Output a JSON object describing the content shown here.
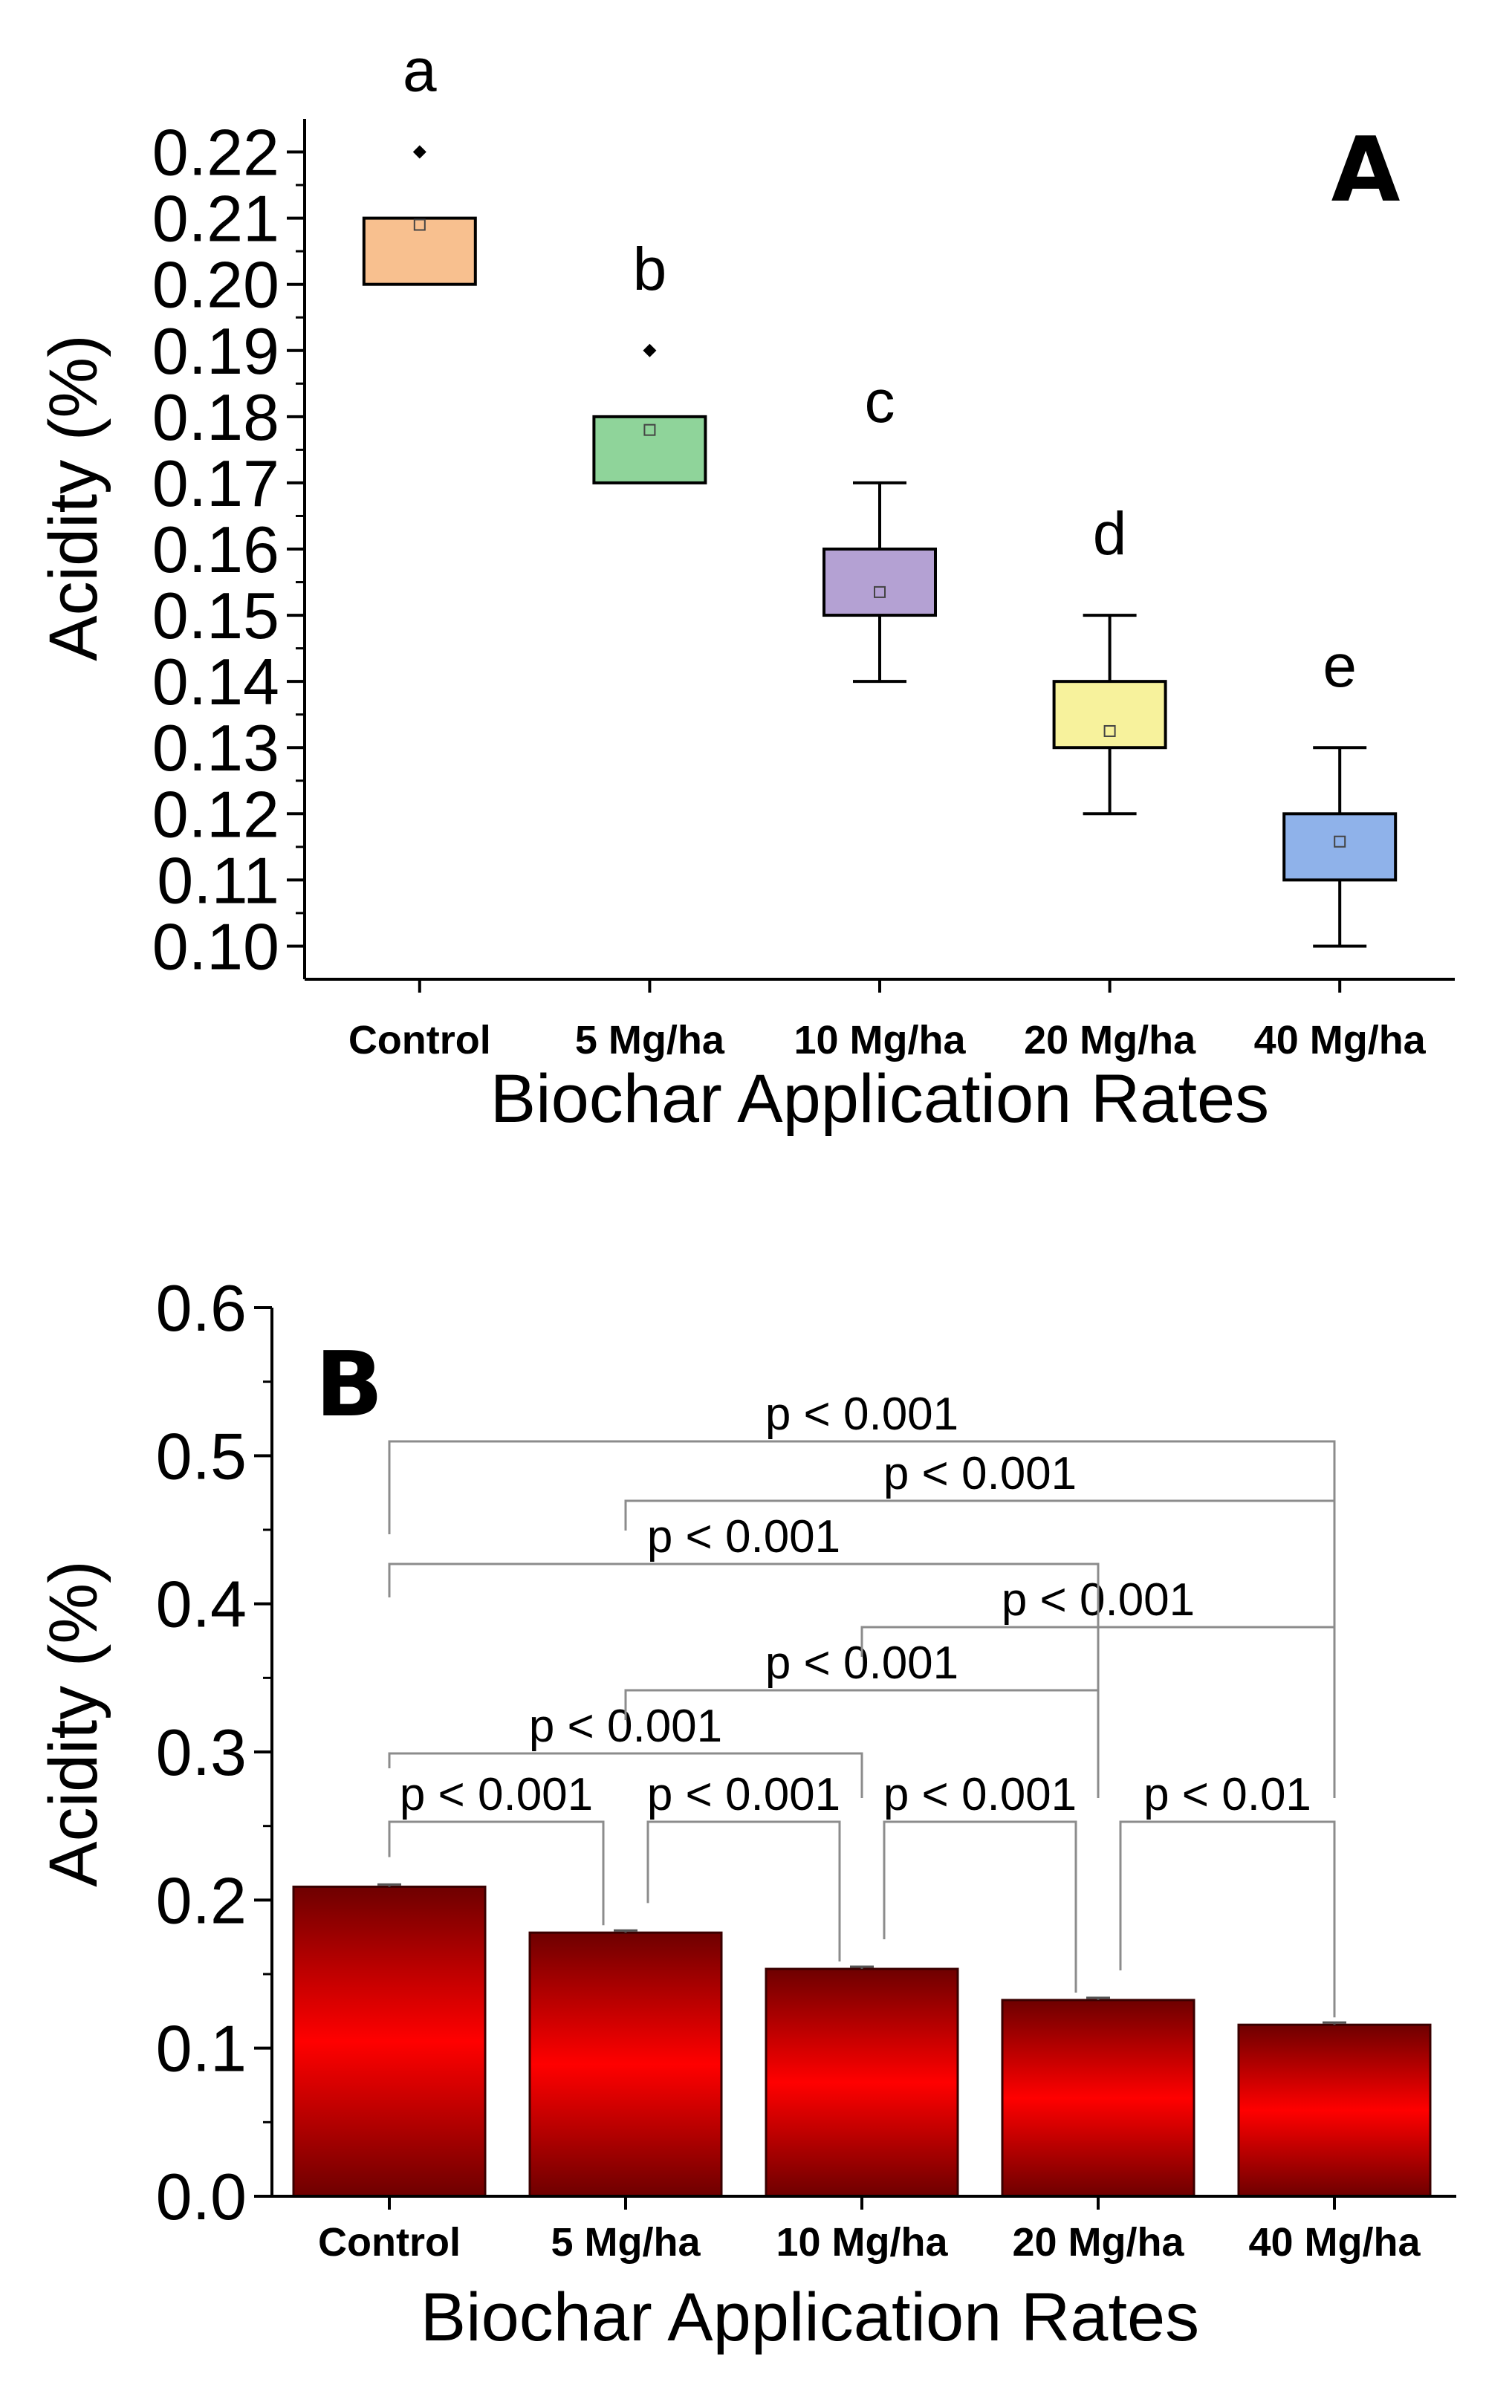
{
  "colors": {
    "box_fills": [
      "#f8c08f",
      "#8fd49a",
      "#b4a1d3",
      "#f7f29c",
      "#8fb2ea"
    ],
    "bar_dark": "#6e0000",
    "bar_bright": "#ff0000",
    "bracket": "#8c8c8c"
  },
  "chart_data": [
    {
      "type": "box",
      "panel_label": "A",
      "xlabel": "Biochar Application Rates",
      "ylabel": "Acidity (%)",
      "ylim": [
        0.095,
        0.225
      ],
      "yticks": [
        "0.10",
        "0.11",
        "0.12",
        "0.13",
        "0.14",
        "0.15",
        "0.16",
        "0.17",
        "0.18",
        "0.19",
        "0.20",
        "0.21",
        "0.22"
      ],
      "categories": [
        "Control",
        "5 Mg/ha",
        "10 Mg/ha",
        "20 Mg/ha",
        "40 Mg/ha"
      ],
      "boxes": [
        {
          "q1": 0.2,
          "q3": 0.21,
          "mean": 0.209,
          "whisker_low": 0.2,
          "whisker_high": 0.21,
          "outlier": 0.22,
          "letter": "a"
        },
        {
          "q1": 0.17,
          "q3": 0.18,
          "mean": 0.178,
          "whisker_low": 0.17,
          "whisker_high": 0.18,
          "outlier": 0.19,
          "letter": "b"
        },
        {
          "q1": 0.15,
          "q3": 0.16,
          "mean": 0.1535,
          "whisker_low": 0.14,
          "whisker_high": 0.17,
          "outlier": null,
          "letter": "c"
        },
        {
          "q1": 0.13,
          "q3": 0.14,
          "mean": 0.1325,
          "whisker_low": 0.12,
          "whisker_high": 0.15,
          "outlier": null,
          "letter": "d"
        },
        {
          "q1": 0.11,
          "q3": 0.12,
          "mean": 0.1158,
          "whisker_low": 0.1,
          "whisker_high": 0.13,
          "outlier": null,
          "letter": "e"
        }
      ]
    },
    {
      "type": "bar",
      "panel_label": "B",
      "xlabel": "Biochar Application Rates",
      "ylabel": "Acidity (%)",
      "ylim": [
        0.0,
        0.6
      ],
      "yticks": [
        "0.0",
        "0.1",
        "0.2",
        "0.3",
        "0.4",
        "0.5",
        "0.6"
      ],
      "categories": [
        "Control",
        "5 Mg/ha",
        "10 Mg/ha",
        "20 Mg/ha",
        "40 Mg/ha"
      ],
      "values": [
        0.209,
        0.178,
        0.1535,
        0.1325,
        0.1158
      ],
      "errors": [
        0.0015,
        0.0015,
        0.0015,
        0.0015,
        0.0015
      ],
      "comparisons": [
        {
          "from": 0,
          "to": 1,
          "label": "p < 0.001"
        },
        {
          "from": 1,
          "to": 2,
          "label": "p < 0.001"
        },
        {
          "from": 2,
          "to": 3,
          "label": "p < 0.001"
        },
        {
          "from": 3,
          "to": 4,
          "label": "p < 0.01"
        },
        {
          "from": 0,
          "to": 2,
          "label": "p < 0.001"
        },
        {
          "from": 1,
          "to": 3,
          "label": "p < 0.001"
        },
        {
          "from": 2,
          "to": 4,
          "label": "p < 0.001"
        },
        {
          "from": 0,
          "to": 3,
          "label": "p < 0.001"
        },
        {
          "from": 1,
          "to": 4,
          "label": "p < 0.001"
        },
        {
          "from": 0,
          "to": 4,
          "label": "p < 0.001"
        }
      ]
    }
  ]
}
